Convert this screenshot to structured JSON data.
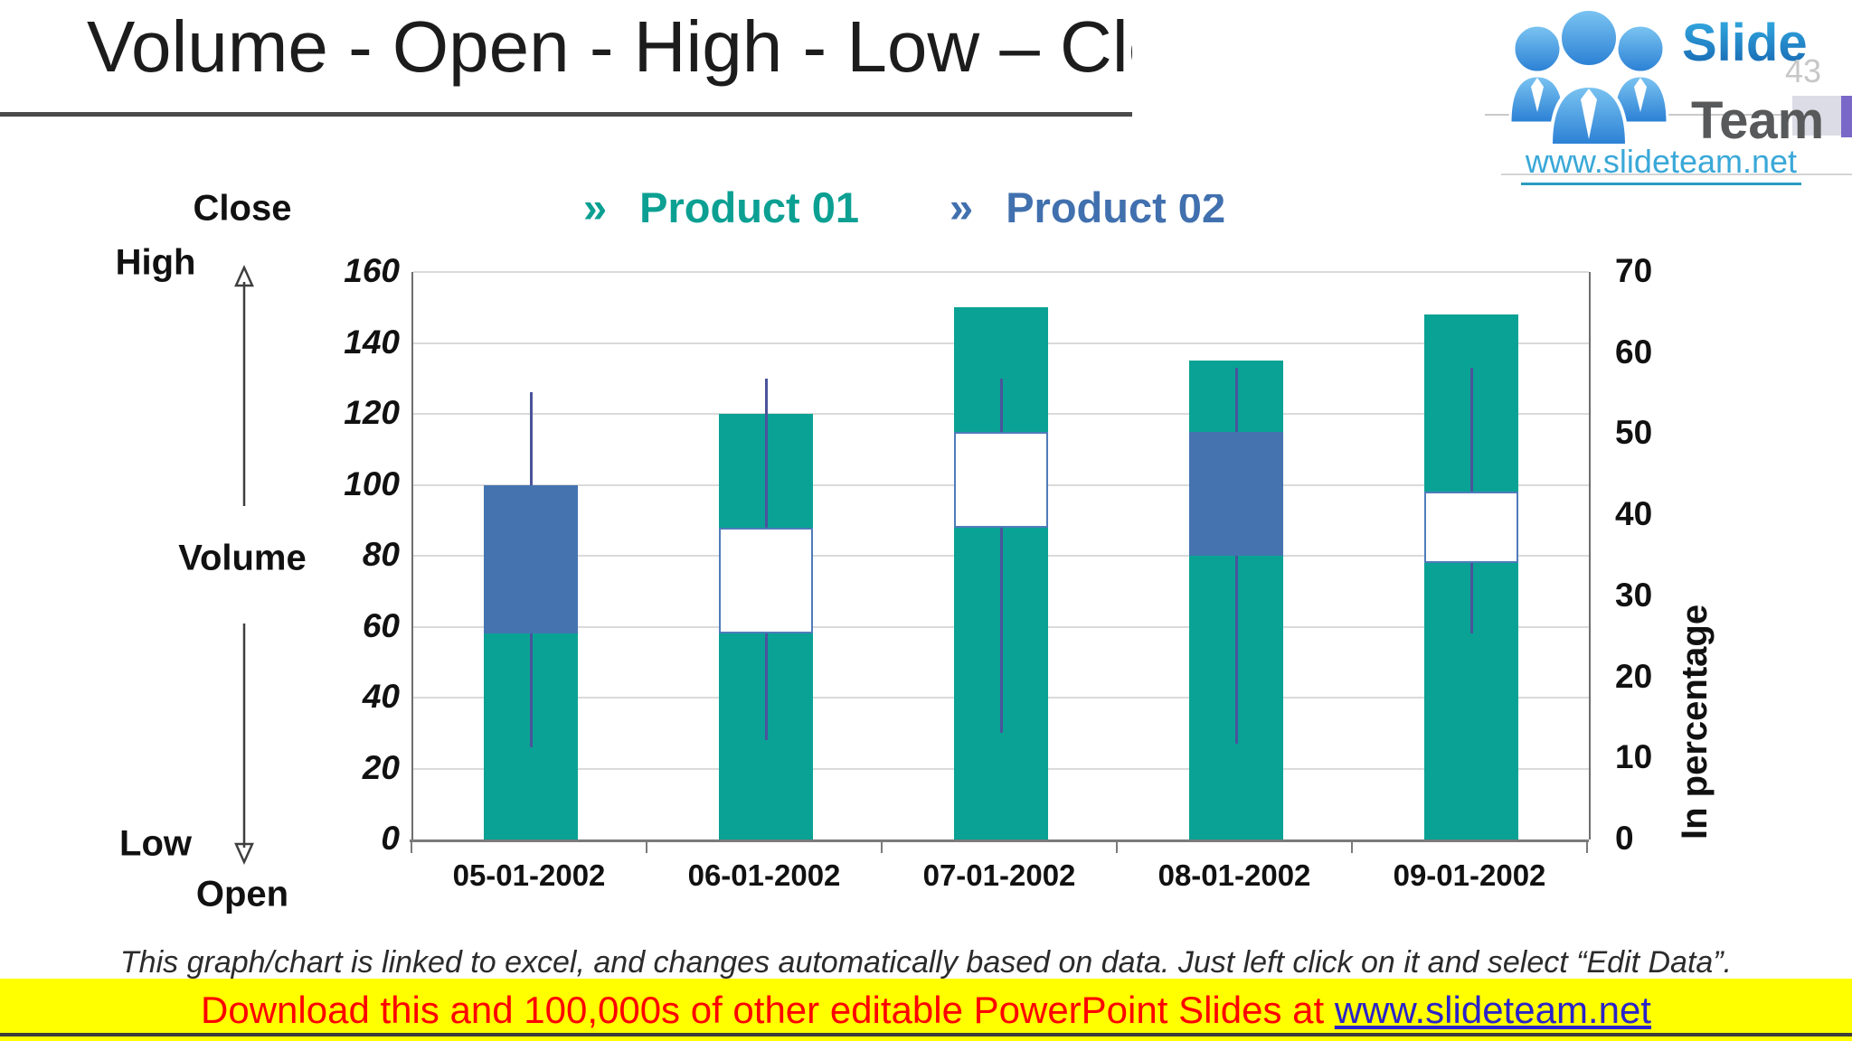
{
  "slide": {
    "title": "Volume - Open - High - Low – Close - Chart",
    "page_number": "43"
  },
  "logo": {
    "brand_top": "Slide",
    "brand_bottom": "Team",
    "url": "www.slideteam.net",
    "icon": "three-people-icon"
  },
  "legend": {
    "items": [
      {
        "marker": "»",
        "label": "Product 01",
        "color": "#0CA093"
      },
      {
        "marker": "»",
        "label": "Product 02",
        "color": "#4170AE"
      }
    ]
  },
  "axis_annotations": {
    "close": "Close",
    "high": "High",
    "volume": "Volume",
    "low": "Low",
    "open": "Open"
  },
  "footnote": "This graph/chart is linked to excel, and changes automatically based on data. Just left click on it and select “Edit Data”.",
  "banner": {
    "text": "Download this and 100,000s of other editable PowerPoint Slides at ",
    "link": "www.slideteam.net",
    "background": "#FFFF00",
    "text_color": "#FF0000",
    "link_color": "#2A23C9"
  },
  "chart_data": {
    "type": "candlestick_with_volume",
    "categories": [
      "05-01-2002",
      "06-01-2002",
      "07-01-2002",
      "08-01-2002",
      "09-01-2002"
    ],
    "series": [
      {
        "name": "Volume bars (Product 01)",
        "type": "bar",
        "axis": "left",
        "color": "#0AA294",
        "values": [
          58,
          120,
          150,
          135,
          148
        ]
      },
      {
        "name": "Open-Close candle boxes",
        "type": "candle-box",
        "axis": "left",
        "filled_color": "#4473B0",
        "hollow_border_color": "#4E7CBA",
        "boxes": [
          {
            "from": 58,
            "to": 100,
            "style": "filled-blue"
          },
          {
            "from": 58,
            "to": 88,
            "style": "hollow-white"
          },
          {
            "from": 88,
            "to": 115,
            "style": "hollow-white"
          },
          {
            "from": 80,
            "to": 115,
            "style": "filled-blue"
          },
          {
            "from": 78,
            "to": 98,
            "style": "hollow-white"
          }
        ]
      },
      {
        "name": "High-Low wicks",
        "type": "wick",
        "axis": "left",
        "color": "#4A549B",
        "wicks": [
          {
            "low": 26,
            "high": 126
          },
          {
            "low": 28,
            "high": 130
          },
          {
            "low": 30,
            "high": 130
          },
          {
            "low": 27,
            "high": 133
          },
          {
            "low": 58,
            "high": 133
          }
        ]
      }
    ],
    "left_axis": {
      "min": 0,
      "max": 160,
      "step": 20,
      "ticks": [
        0,
        20,
        40,
        60,
        80,
        100,
        120,
        140,
        160
      ]
    },
    "right_axis": {
      "min": 0,
      "max": 70,
      "step": 10,
      "ticks": [
        0,
        10,
        20,
        30,
        40,
        50,
        60,
        70
      ],
      "label": "In percentage"
    },
    "grid": true,
    "legend_position": "top"
  }
}
